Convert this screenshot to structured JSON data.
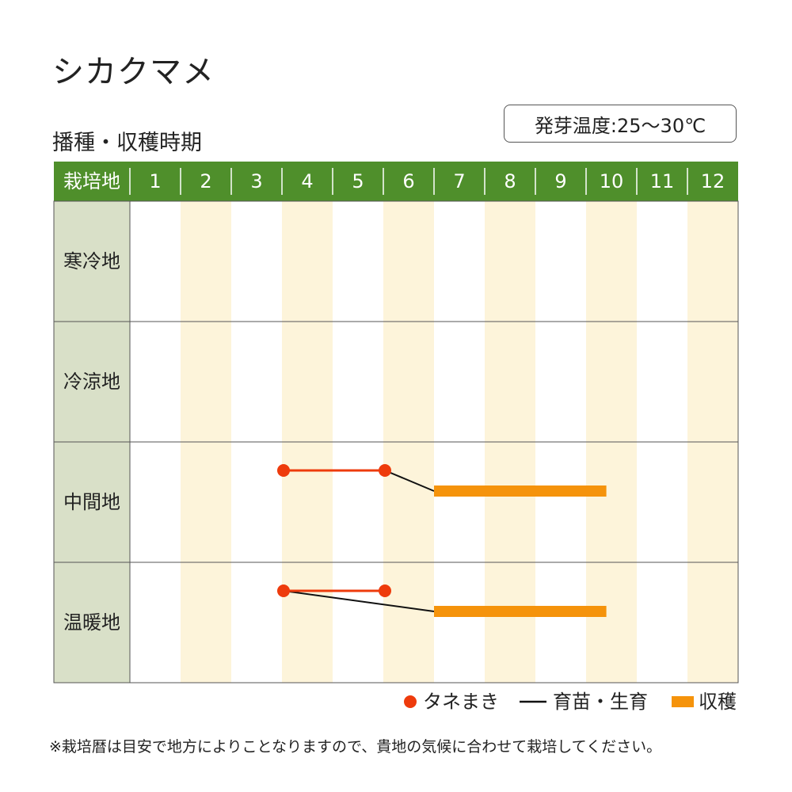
{
  "title": "シカクマメ",
  "subtitle": "播種・収穫時期",
  "temperature": "発芽温度:25〜30℃",
  "table": {
    "corner_label": "栽培地",
    "months": [
      "1",
      "2",
      "3",
      "4",
      "5",
      "6",
      "7",
      "8",
      "9",
      "10",
      "11",
      "12"
    ],
    "regions": [
      "寒冷地",
      "冷涼地",
      "中間地",
      "温暖地"
    ]
  },
  "colors": {
    "header_green": "#4f8f2b",
    "region_bg": "#d9e0c8",
    "stripe": "#fdf4da",
    "sowing": "#ee3b0c",
    "growing": "#111111",
    "harvest": "#f5930b",
    "grid": "#555555"
  },
  "schedule": [
    {
      "region": "中間地",
      "sowing": [
        4,
        6
      ],
      "growing": [
        6,
        7
      ],
      "harvest": [
        7,
        10.4
      ]
    },
    {
      "region": "温暖地",
      "sowing": [
        4,
        6
      ],
      "growing": [
        4,
        7
      ],
      "harvest": [
        7,
        10.4
      ]
    }
  ],
  "legend": {
    "sowing": "タネまき",
    "growing": "育苗・生育",
    "harvest": "収穫"
  },
  "note": "※栽培暦は目安で地方によりことなりますので、貴地の気候に合わせて栽培してください。"
}
